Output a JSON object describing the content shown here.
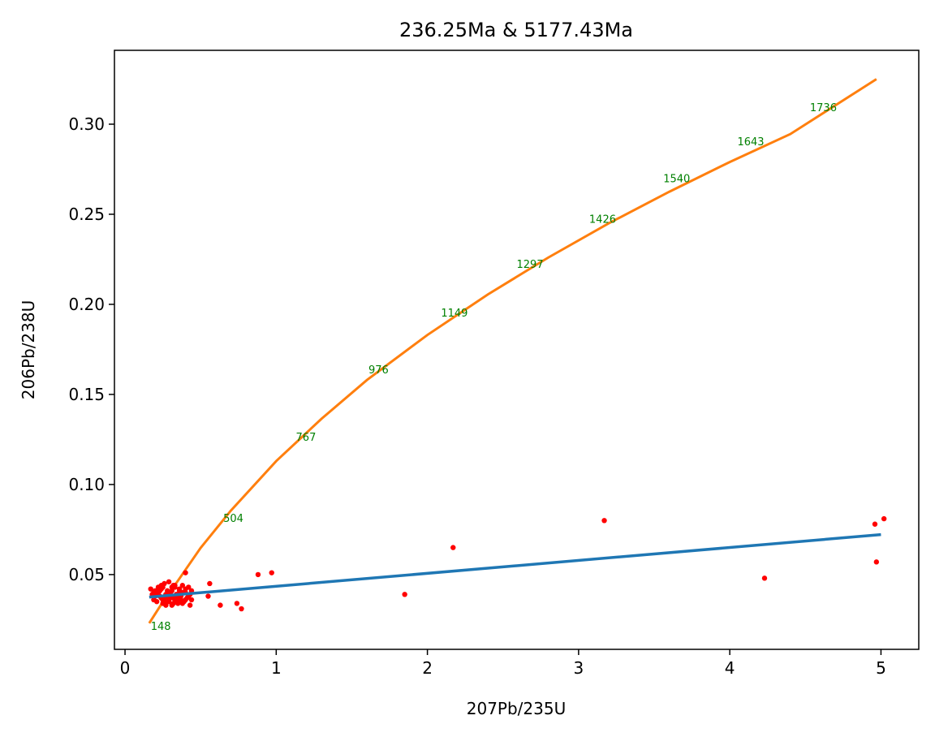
{
  "chart_data": {
    "type": "scatter",
    "title": "236.25Ma & 5177.43Ma",
    "xlabel": "207Pb/235U",
    "ylabel": "206Pb/238U",
    "xlim": [
      -0.07,
      5.25
    ],
    "ylim": [
      0.0085,
      0.341
    ],
    "x_ticks": [
      0,
      1,
      2,
      3,
      4,
      5
    ],
    "x_tick_labels": [
      "0",
      "1",
      "2",
      "3",
      "4",
      "5"
    ],
    "y_ticks": [
      0.05,
      0.1,
      0.15,
      0.2,
      0.25,
      0.3
    ],
    "y_tick_labels": [
      "0.05",
      "0.10",
      "0.15",
      "0.20",
      "0.25",
      "0.30"
    ],
    "grid": false,
    "colors": {
      "concordia": "#ff7f0e",
      "discordia": "#1f77b4",
      "points": "#ff0000",
      "age_labels": "#008000"
    },
    "concordia": {
      "name": "concordia",
      "x": [
        0.16,
        0.25,
        0.35,
        0.5,
        0.7,
        1.0,
        1.3,
        1.6,
        2.0,
        2.4,
        2.8,
        3.2,
        3.6,
        4.0,
        4.4,
        4.97
      ],
      "y": [
        0.023,
        0.0348,
        0.0466,
        0.0648,
        0.0855,
        0.113,
        0.1365,
        0.158,
        0.183,
        0.2055,
        0.226,
        0.245,
        0.2625,
        0.279,
        0.2945,
        0.325
      ]
    },
    "discordia": {
      "name": "discordia",
      "x": [
        0.16,
        5.0
      ],
      "y": [
        0.0375,
        0.0722
      ]
    },
    "age_labels": [
      {
        "text": "148",
        "x": 0.17,
        "y": 0.0215
      },
      {
        "text": "504",
        "x": 0.65,
        "y": 0.0815
      },
      {
        "text": "767",
        "x": 1.13,
        "y": 0.1265
      },
      {
        "text": "976",
        "x": 1.61,
        "y": 0.164
      },
      {
        "text": "1149",
        "x": 2.09,
        "y": 0.1955
      },
      {
        "text": "1297",
        "x": 2.59,
        "y": 0.2225
      },
      {
        "text": "1426",
        "x": 3.07,
        "y": 0.2475
      },
      {
        "text": "1540",
        "x": 3.56,
        "y": 0.27
      },
      {
        "text": "1643",
        "x": 4.05,
        "y": 0.2905
      },
      {
        "text": "1736",
        "x": 4.53,
        "y": 0.3095
      }
    ],
    "points": {
      "name": "data",
      "x": [
        0.17,
        0.18,
        0.19,
        0.2,
        0.21,
        0.22,
        0.23,
        0.24,
        0.25,
        0.26,
        0.27,
        0.28,
        0.29,
        0.3,
        0.31,
        0.32,
        0.33,
        0.34,
        0.35,
        0.36,
        0.37,
        0.38,
        0.39,
        0.4,
        0.41,
        0.42,
        0.43,
        0.44,
        0.2,
        0.22,
        0.24,
        0.26,
        0.28,
        0.3,
        0.32,
        0.34,
        0.36,
        0.38,
        0.4,
        0.42,
        0.21,
        0.23,
        0.25,
        0.27,
        0.29,
        0.31,
        0.33,
        0.35,
        0.37,
        0.39,
        0.25,
        0.27,
        0.29,
        0.31,
        0.33,
        0.35,
        0.3,
        0.32,
        0.24,
        0.26,
        0.28,
        0.36,
        0.38,
        0.4,
        0.19,
        0.44,
        0.43,
        0.4,
        0.55,
        0.56,
        0.63,
        0.74,
        0.77,
        0.88,
        0.97,
        1.85,
        2.17,
        3.17,
        4.23,
        4.96,
        4.97,
        5.02
      ],
      "y": [
        0.042,
        0.039,
        0.036,
        0.041,
        0.035,
        0.043,
        0.038,
        0.044,
        0.036,
        0.045,
        0.033,
        0.041,
        0.046,
        0.037,
        0.043,
        0.034,
        0.044,
        0.039,
        0.036,
        0.042,
        0.038,
        0.044,
        0.035,
        0.04,
        0.037,
        0.043,
        0.039,
        0.036,
        0.038,
        0.04,
        0.042,
        0.034,
        0.038,
        0.04,
        0.044,
        0.036,
        0.038,
        0.04,
        0.042,
        0.038,
        0.039,
        0.041,
        0.034,
        0.037,
        0.039,
        0.041,
        0.043,
        0.038,
        0.036,
        0.04,
        0.043,
        0.039,
        0.035,
        0.033,
        0.036,
        0.034,
        0.038,
        0.037,
        0.037,
        0.035,
        0.039,
        0.041,
        0.034,
        0.036,
        0.04,
        0.041,
        0.033,
        0.051,
        0.038,
        0.045,
        0.033,
        0.034,
        0.031,
        0.05,
        0.051,
        0.039,
        0.065,
        0.08,
        0.048,
        0.078,
        0.057,
        0.081
      ]
    }
  }
}
